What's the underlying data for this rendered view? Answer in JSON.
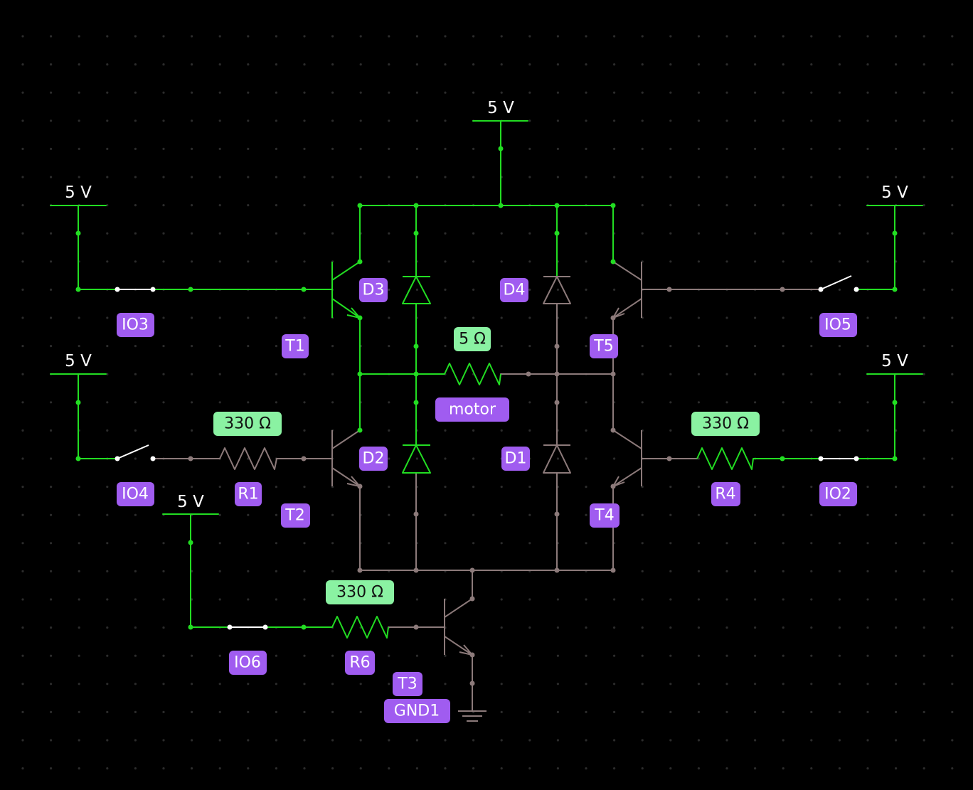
{
  "supply_labels": {
    "top": "5 V",
    "left_top": "5 V",
    "left_mid": "5 V",
    "right_top": "5 V",
    "right_mid": "5 V",
    "bottom": "5 V"
  },
  "components": {
    "T1": "T1",
    "T2": "T2",
    "T3": "T3",
    "T4": "T4",
    "T5": "T5",
    "D1": "D1",
    "D2": "D2",
    "D3": "D3",
    "D4": "D4",
    "R1": "R1",
    "R4": "R4",
    "R6": "R6",
    "IO2": "IO2",
    "IO3": "IO3",
    "IO4": "IO4",
    "IO5": "IO5",
    "IO6": "IO6",
    "motor": "motor",
    "GND1": "GND1"
  },
  "values": {
    "R1": "330 Ω",
    "R4": "330 Ω",
    "R6": "330 Ω",
    "motor": "5 Ω"
  },
  "colors": {
    "active_wire": "#22dd22",
    "inactive_wire": "#8c7a7a",
    "name_tag": "#a05cf0",
    "value_tag": "#8af2a2",
    "background": "#000000"
  }
}
